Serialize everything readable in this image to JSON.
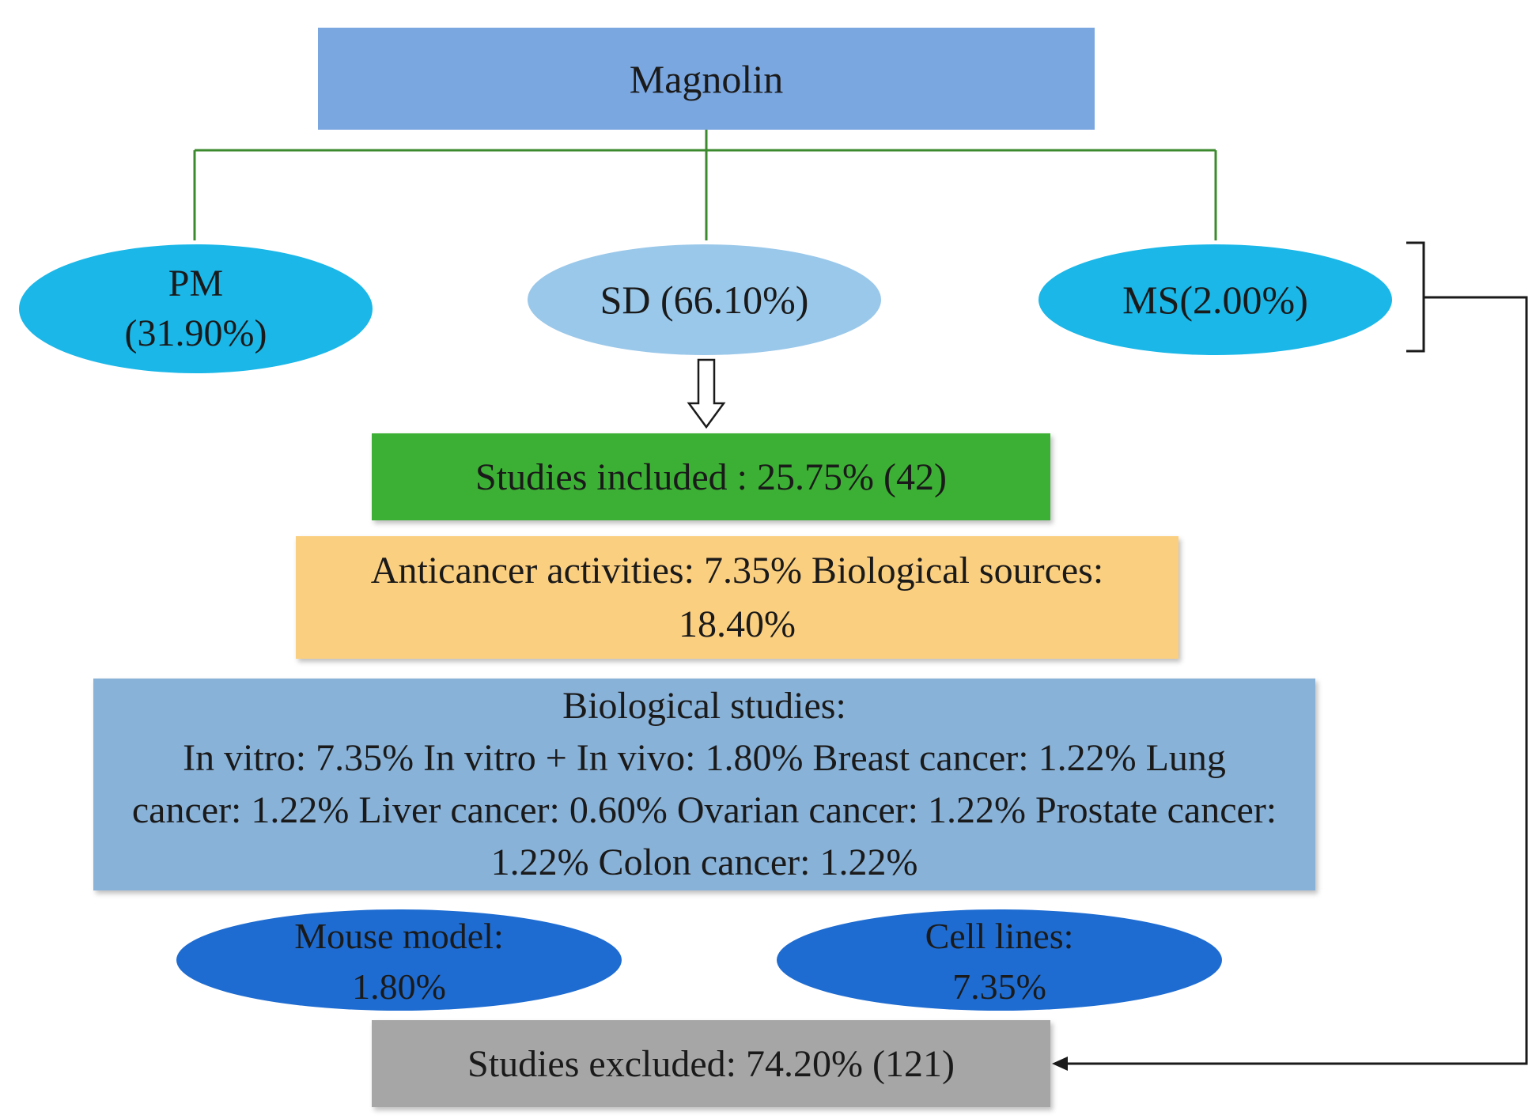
{
  "title": "Magnolin",
  "branches": {
    "pm": {
      "name": "PM",
      "percent": "(31.90%)"
    },
    "sd": {
      "label": "SD (66.10%)"
    },
    "ms": {
      "label": "MS(2.00%)"
    }
  },
  "included": "Studies included : 25.75% (42)",
  "activities": {
    "line1": "Anticancer activities: 7.35% Biological sources:",
    "line2": "18.40%"
  },
  "biological": {
    "heading": "Biological studies:",
    "body": "In vitro: 7.35% In vitro + In vivo: 1.80% Breast cancer: 1.22% Lung cancer: 1.22% Liver cancer: 0.60%  Ovarian cancer: 1.22% Prostate cancer: 1.22%  Colon cancer: 1.22%"
  },
  "models": {
    "mouse": {
      "label": "Mouse model:",
      "value": "1.80%"
    },
    "cells": {
      "label": "Cell lines:",
      "value": "7.35%"
    }
  },
  "excluded": "Studies excluded: 74.20% (121)",
  "colors": {
    "title_fill": "#7ba7e0",
    "branch_fill": "#1ab7e8",
    "sd_fill": "#9ac8ea",
    "included_fill": "#3cb034",
    "activities_fill": "#fbcf80",
    "bio_fill": "#89b2d8",
    "model_fill": "#1e6cd1",
    "excluded_fill": "#a6a6a6",
    "tree_line": "#3c8a2e"
  }
}
